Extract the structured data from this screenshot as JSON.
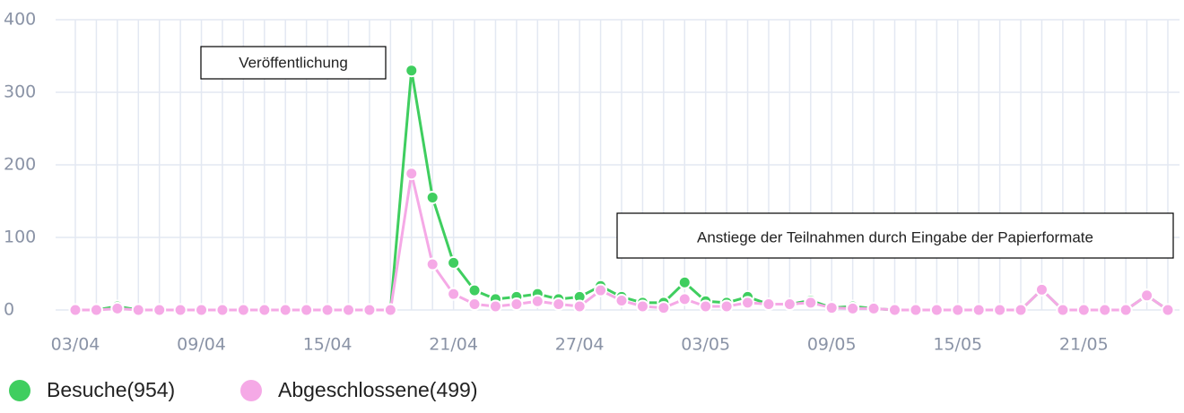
{
  "chart_data": {
    "type": "line",
    "categories": [
      "03/04",
      null,
      null,
      null,
      null,
      null,
      "09/04",
      null,
      null,
      null,
      null,
      null,
      "15/04",
      null,
      null,
      null,
      null,
      null,
      "21/04",
      null,
      null,
      null,
      null,
      null,
      "27/04",
      null,
      null,
      null,
      null,
      null,
      "03/05",
      null,
      null,
      null,
      null,
      null,
      "09/05",
      null,
      null,
      null,
      null,
      null,
      "15/05",
      null,
      null,
      null,
      null,
      null,
      "21/05",
      null,
      null,
      null,
      null
    ],
    "series": [
      {
        "name": "Besuche(954)",
        "color": "#3fce5f",
        "values": [
          0,
          0,
          5,
          0,
          0,
          0,
          0,
          0,
          0,
          0,
          0,
          0,
          0,
          0,
          0,
          0,
          330,
          155,
          65,
          27,
          15,
          18,
          22,
          15,
          18,
          33,
          18,
          10,
          10,
          38,
          12,
          10,
          18,
          8,
          8,
          13,
          3,
          5,
          2,
          0,
          0,
          0,
          0,
          0,
          0,
          0,
          28,
          0,
          0,
          0,
          0,
          20,
          0
        ]
      },
      {
        "name": "Abgeschlossene(499)",
        "color": "#f5a9e6",
        "values": [
          0,
          0,
          2,
          0,
          0,
          0,
          0,
          0,
          0,
          0,
          0,
          0,
          0,
          0,
          0,
          0,
          188,
          63,
          22,
          8,
          5,
          8,
          12,
          8,
          5,
          27,
          13,
          5,
          3,
          15,
          5,
          5,
          10,
          8,
          8,
          10,
          3,
          2,
          2,
          0,
          0,
          0,
          0,
          0,
          0,
          0,
          28,
          0,
          0,
          0,
          0,
          20,
          0
        ]
      }
    ],
    "ylim": [
      0,
      400
    ],
    "yticks": [
      0,
      100,
      200,
      300,
      400
    ],
    "grid": true,
    "annotations": [
      "Veröffentlichung",
      "Anstiege der Teilnahmen durch Eingabe der Papierformate"
    ]
  }
}
